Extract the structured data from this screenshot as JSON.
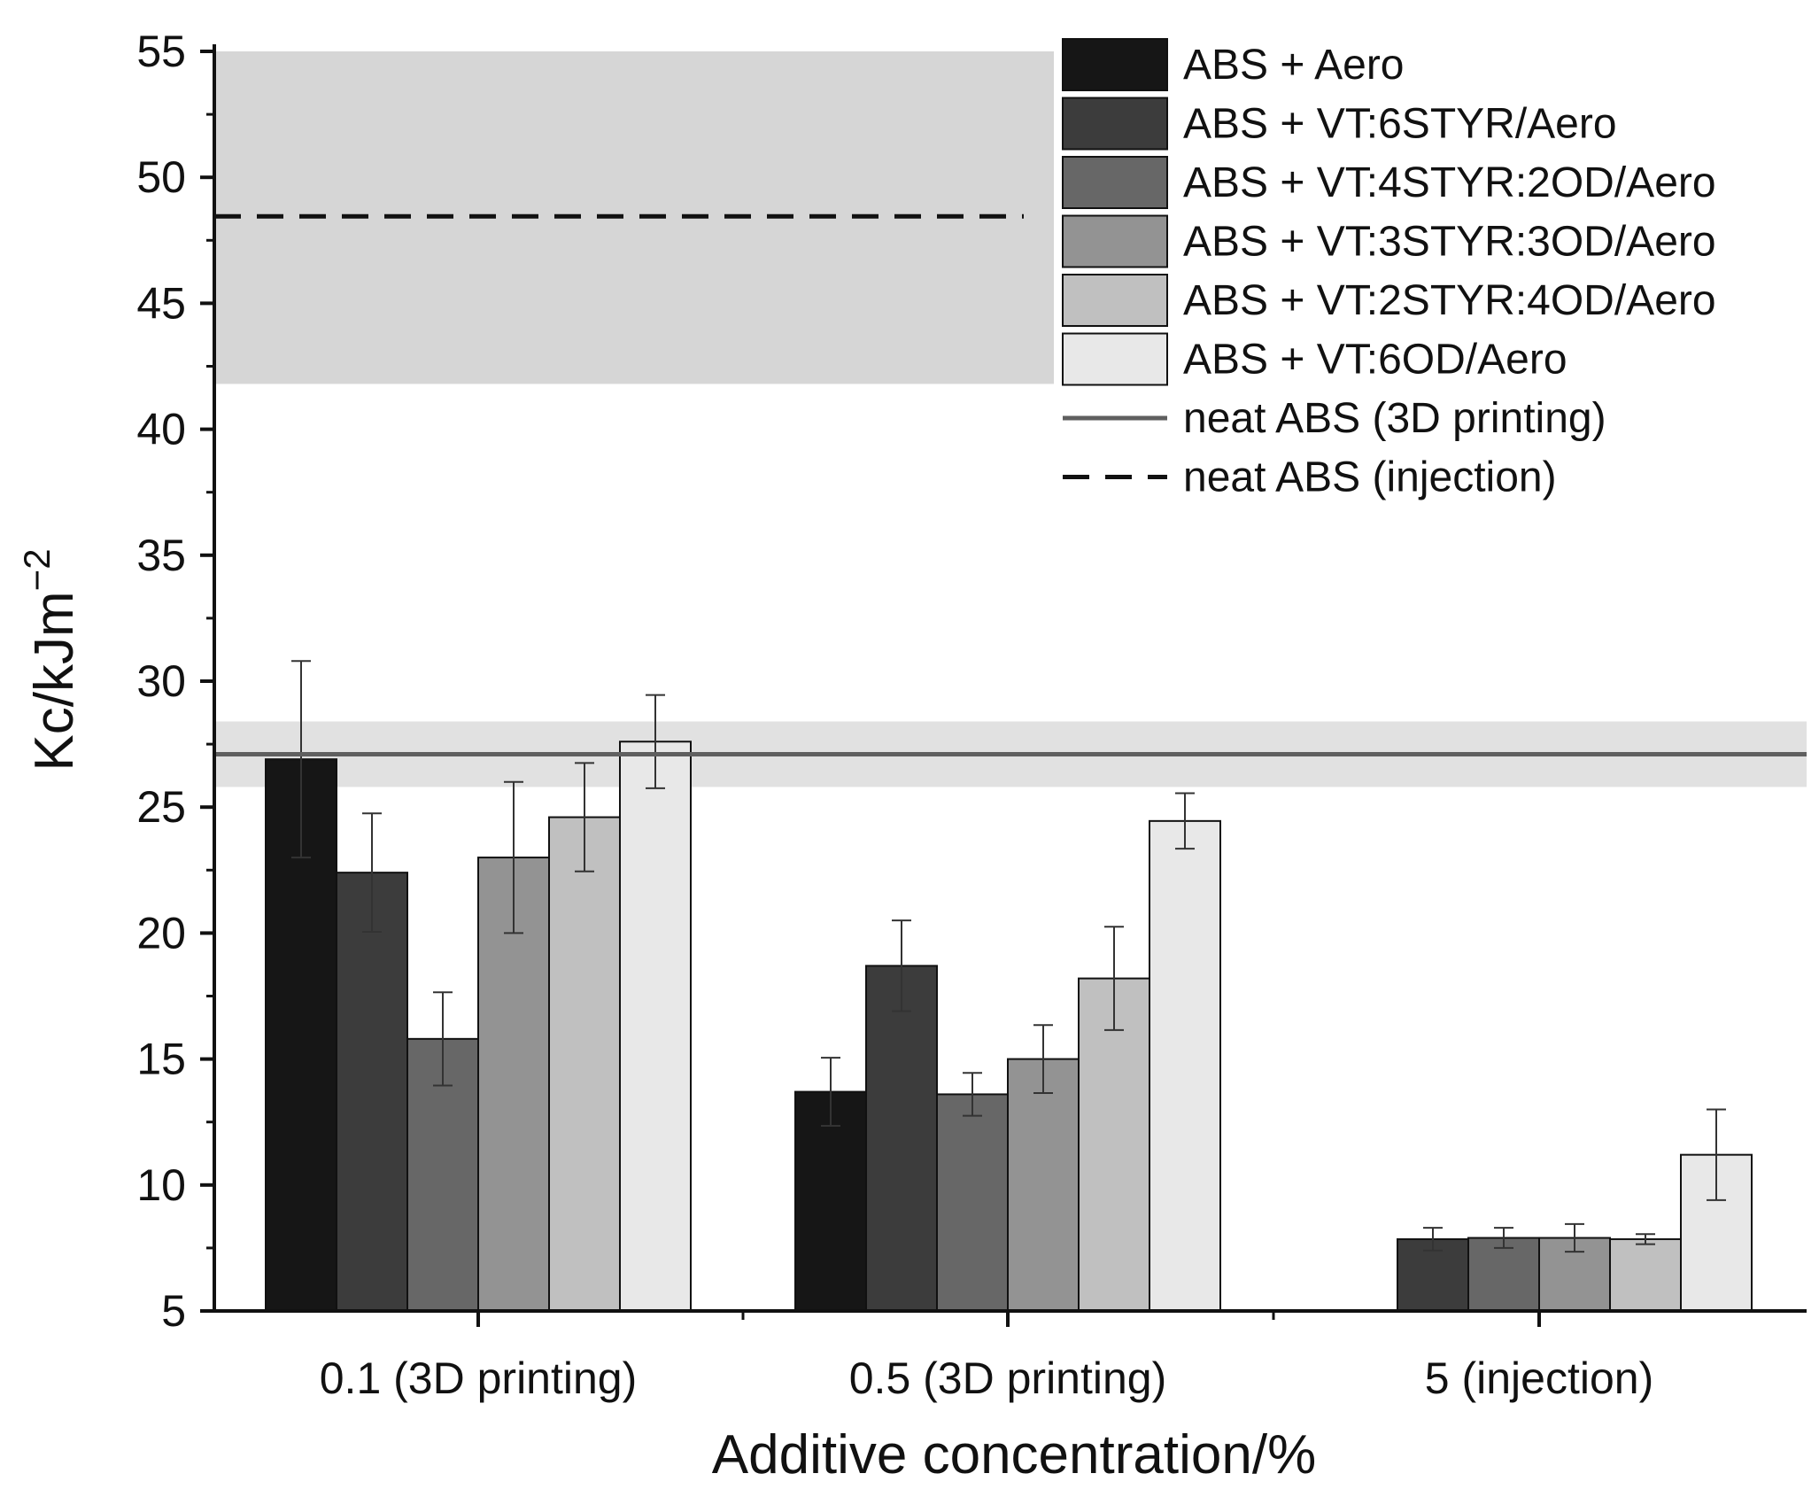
{
  "chart_data": {
    "type": "bar",
    "xlabel": "Additive concentration/%",
    "ylabel_main": "Kc/kJm",
    "ylabel_sup": "−2",
    "ylim": [
      5,
      55
    ],
    "yticks": [
      5,
      10,
      15,
      20,
      25,
      30,
      35,
      40,
      45,
      50,
      55
    ],
    "categories": [
      "0.1 (3D printing)",
      "0.5 (3D printing)",
      "5 (injection)"
    ],
    "series": [
      {
        "name": "ABS + Aero",
        "color": "#161616",
        "values": [
          26.9,
          13.7,
          null
        ],
        "errors": [
          3.9,
          1.35,
          null
        ]
      },
      {
        "name": "ABS + VT:6STYR/Aero",
        "color": "#3c3c3c",
        "values": [
          22.4,
          18.7,
          7.85
        ],
        "errors": [
          2.35,
          1.8,
          0.45
        ]
      },
      {
        "name": "ABS + VT:4STYR:2OD/Aero",
        "color": "#676767",
        "values": [
          15.8,
          13.6,
          7.9
        ],
        "errors": [
          1.85,
          0.85,
          0.4
        ]
      },
      {
        "name": "ABS + VT:3STYR:3OD/Aero",
        "color": "#939393",
        "values": [
          23.0,
          15.0,
          7.9
        ],
        "errors": [
          3.0,
          1.35,
          0.55
        ]
      },
      {
        "name": "ABS + VT:2STYR:4OD/Aero",
        "color": "#c0c0c0",
        "values": [
          24.6,
          18.2,
          7.85
        ],
        "errors": [
          2.15,
          2.05,
          0.2
        ]
      },
      {
        "name": "ABS + VT:6OD/Aero",
        "color": "#e8e8e8",
        "values": [
          27.6,
          24.45,
          11.2
        ],
        "errors": [
          1.85,
          1.1,
          1.8
        ]
      }
    ],
    "reference_lines": [
      {
        "name": "neat ABS (3D printing)",
        "value": 27.1,
        "band": [
          25.8,
          28.4
        ],
        "style": "solid",
        "color": "#5f5f5f"
      },
      {
        "name": "neat ABS (injection)",
        "value": 48.45,
        "band": [
          41.8,
          55.0
        ],
        "style": "dashed",
        "color": "#111111"
      }
    ],
    "legend_position": "top-right"
  }
}
